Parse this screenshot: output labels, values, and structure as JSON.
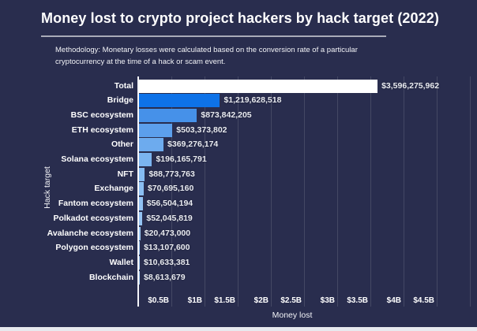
{
  "page": {
    "background_color": "#292d4e",
    "bottom_strip_color": "#e7e9ee"
  },
  "header": {
    "title": "Money lost to crypto project hackers by hack target (2022)",
    "methodology_line1": "Methodology: Monetary losses were calculated based on the conversion rate of a particular",
    "methodology_line2": "cryptocurrency at the time of a hack or scam event."
  },
  "chart_data": {
    "type": "bar",
    "orientation": "horizontal",
    "title": "Money lost to crypto project hackers by hack target (2022)",
    "xlabel": "Money lost",
    "ylabel": "Hack target",
    "grid": true,
    "xlim": [
      0,
      5000000000
    ],
    "x_grid_step": 500000000,
    "categories": [
      "Total",
      "Bridge",
      "BSC ecosystem",
      "ETH ecosystem",
      "Other",
      "Solana ecosystem",
      "NFT",
      "Exchange",
      "Fantom ecosystem",
      "Polkadot ecosystem",
      "Avalanche ecosystem",
      "Polygon ecosystem",
      "Wallet",
      "Blockchain"
    ],
    "values": [
      3596275962,
      1219628518,
      873842205,
      503373802,
      369276174,
      196165791,
      88773763,
      70695160,
      56504194,
      52045819,
      20473000,
      13107600,
      10633381,
      8613679
    ],
    "value_labels": [
      "$3,596,275,962",
      "$1,219,628,518",
      "$873,842,205",
      "$503,373,802",
      "$369,276,174",
      "$196,165,791",
      "$88,773,763",
      "$70,695,160",
      "$56,504,194",
      "$52,045,819",
      "$20,473,000",
      "$13,107,600",
      "$10,633,381",
      "$8,613,679"
    ],
    "bar_colors": [
      "#ffffff",
      "#0e72e8",
      "#4691e9",
      "#5c9fec",
      "#6dabee",
      "#7bb4f0",
      "#84baf1",
      "#8abef2",
      "#90c1f3",
      "#94c3f3",
      "#9bc8f4",
      "#a0cbf5",
      "#a4cdf5",
      "#a9d0f6"
    ],
    "x_ticks": [
      {
        "label": "$0.5B",
        "value": 500000000
      },
      {
        "label": "$1B",
        "value": 1000000000
      },
      {
        "label": "$1.5B",
        "value": 1500000000
      },
      {
        "label": "$2B",
        "value": 2000000000
      },
      {
        "label": "$2.5B",
        "value": 2500000000
      },
      {
        "label": "$3B",
        "value": 3000000000
      },
      {
        "label": "$3.5B",
        "value": 3500000000
      },
      {
        "label": "$4B",
        "value": 4000000000
      },
      {
        "label": "$4.5B",
        "value": 4500000000
      }
    ],
    "legend": null,
    "annotations": []
  }
}
